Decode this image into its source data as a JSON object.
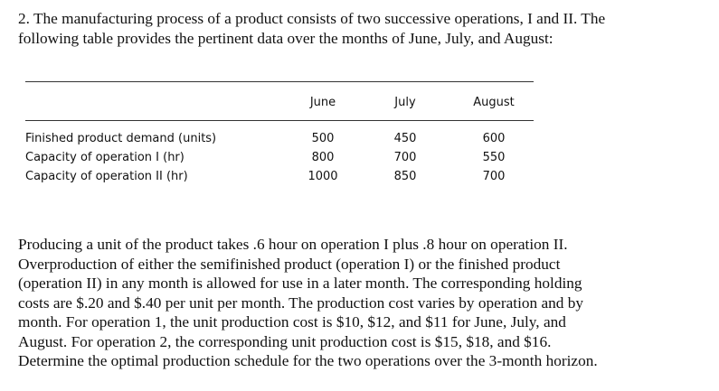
{
  "problem": {
    "intro": [
      "2. The manufacturing process of a product consists of two successive operations, I and II. The",
      "following table provides the pertinent data over the months of June, July, and August:"
    ],
    "table": {
      "header": [
        "June",
        "July",
        "August"
      ],
      "rows": [
        [
          "Finished product demand (units)",
          "500",
          "450",
          "600"
        ],
        [
          "Capacity of operation I (hr)",
          "800",
          "700",
          "550"
        ],
        [
          "Capacity of operation II (hr)",
          "1000",
          "850",
          "700"
        ]
      ]
    },
    "body": [
      "Producing a unit of the product takes .6 hour on operation I plus .8 hour on operation II.",
      "Overproduction of either the semifinished product (operation I) or the finished product",
      "(operation II) in any month is allowed for use in a later month. The corresponding holding",
      "costs are $.20 and $.40 per unit per month. The production cost varies by operation and by",
      "month. For operation 1, the unit production cost is $10, $12, and $11 for June, July, and",
      "August. For operation 2, the corresponding unit production cost is $15, $18, and $16.",
      "Determine the optimal production schedule for the two operations over the 3-month horizon."
    ]
  }
}
